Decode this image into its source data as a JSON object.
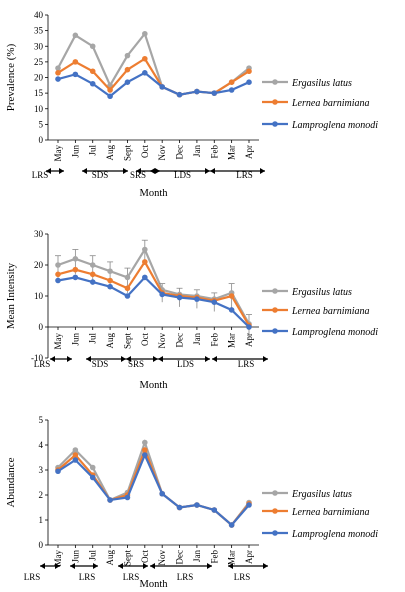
{
  "colors": {
    "grey": "#a6a6a6",
    "orange": "#ed7d31",
    "blue": "#4472c4"
  },
  "chart_data": [
    {
      "type": "line",
      "categories": [
        "May",
        "Jun",
        "Jul",
        "Aug",
        "Sept",
        "Oct",
        "Nov",
        "Dec",
        "Jan",
        "Feb",
        "Mar",
        "Apr"
      ],
      "ylabel": "Prevalence (%)",
      "xlabel": "Month",
      "ylim": [
        0,
        40
      ],
      "yticks": [
        0,
        5,
        10,
        15,
        20,
        25,
        30,
        35,
        40
      ],
      "legend": "right",
      "series": [
        {
          "name": "Ergasilus latus",
          "color": "grey",
          "values": [
            23,
            33.5,
            30,
            17.5,
            27,
            34,
            17,
            14.5,
            15.5,
            15,
            18.5,
            23
          ]
        },
        {
          "name": "Lernea barnimiana",
          "color": "orange",
          "values": [
            21.5,
            25,
            22,
            16,
            22.5,
            26,
            17,
            14.5,
            15.5,
            15,
            18.5,
            22
          ]
        },
        {
          "name": "Lamproglena monodi",
          "color": "blue",
          "values": [
            19.5,
            21,
            18,
            14,
            18.5,
            21.5,
            17,
            14.5,
            15.5,
            15,
            16,
            18.5
          ]
        }
      ],
      "seasons": [
        "LRS",
        "SDS",
        "SRS",
        "LDS",
        "LRS"
      ]
    },
    {
      "type": "line",
      "categories": [
        "May",
        "Jun",
        "Jul",
        "Aug",
        "Sept",
        "Oct",
        "Nov",
        "Dec",
        "Jan",
        "Feb",
        "Mar",
        "Apr"
      ],
      "ylabel": "Mean Intensity",
      "xlabel": "Month",
      "ylim": [
        -10,
        30
      ],
      "yticks": [
        -10,
        0,
        10,
        20,
        30
      ],
      "legend": "right",
      "series": [
        {
          "name": "Ergasilus latus",
          "color": "grey",
          "values": [
            20,
            22,
            20,
            18,
            16,
            25,
            12,
            10.5,
            10,
            9,
            11,
            1
          ]
        },
        {
          "name": "Lernea barnimiana",
          "color": "orange",
          "values": [
            17,
            18.5,
            17,
            15,
            12.5,
            21,
            11,
            10,
            9.5,
            8.5,
            10,
            0.5
          ]
        },
        {
          "name": "Lamproglena monodi",
          "color": "blue",
          "values": [
            15,
            16,
            14.5,
            13,
            10,
            16,
            10.5,
            9.5,
            9,
            8,
            5.5,
            0
          ]
        }
      ],
      "errors": [
        3,
        3,
        3,
        3,
        3,
        3,
        2,
        2,
        2,
        2,
        3,
        3
      ],
      "seasons": [
        "LRS",
        "SDS",
        "SRS",
        "LDS",
        "LRS"
      ]
    },
    {
      "type": "line",
      "categories": [
        "May",
        "Jun",
        "Jul",
        "Aug",
        "Sept",
        "Oct",
        "Nov",
        "Dec",
        "Jan",
        "Feb",
        "Mar",
        "Apr"
      ],
      "ylabel": "Abundance",
      "xlabel": "Month",
      "ylim": [
        0,
        5
      ],
      "yticks": [
        0,
        1,
        2,
        3,
        4,
        5
      ],
      "legend": "right",
      "series": [
        {
          "name": "Ergasilus latus",
          "color": "grey",
          "values": [
            3.1,
            3.8,
            3.1,
            1.8,
            2.1,
            4.1,
            2.05,
            1.5,
            1.6,
            1.4,
            0.8,
            1.7
          ]
        },
        {
          "name": "Lernea barnimiana",
          "color": "orange",
          "values": [
            3.0,
            3.6,
            2.8,
            1.8,
            2.0,
            3.8,
            2.05,
            1.5,
            1.6,
            1.4,
            0.8,
            1.65
          ]
        },
        {
          "name": "Lamproglena monodi",
          "color": "blue",
          "values": [
            2.95,
            3.4,
            2.7,
            1.8,
            1.9,
            3.6,
            2.05,
            1.5,
            1.6,
            1.4,
            0.8,
            1.6
          ]
        }
      ],
      "seasons": [
        "LRS",
        "LRS",
        "LRS",
        "LRS",
        "LRS"
      ]
    }
  ]
}
